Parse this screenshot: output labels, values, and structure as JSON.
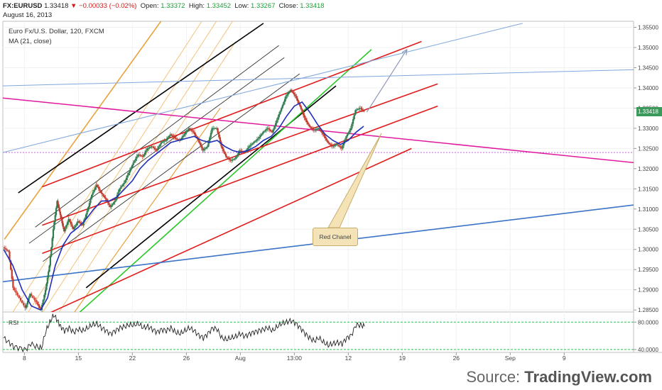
{
  "header": {
    "symbol": "FX:EURUSD",
    "last": "1.33418",
    "change_arrow": "▼",
    "change": "−0.00033 (−0.02%)",
    "open_label": "Open:",
    "open": "1.33372",
    "high_label": "High:",
    "high": "1.33452",
    "low_label": "Low:",
    "low": "1.33267",
    "close_label": "Close:",
    "close": "1.33418",
    "date": "August 16, 2013"
  },
  "legend": {
    "title": "Euro Fx/U.S. Dollar, 120, FXCM",
    "ma": "MA (21, close)"
  },
  "price_tag": "1.33418",
  "annotation": "Red Chanel",
  "source": {
    "prefix": "Source: ",
    "brand": "TradingView.com"
  },
  "chart_data": [
    {
      "type": "candlestick",
      "title": "Euro Fx/U.S. Dollar, 120, FXCM",
      "xlabel": "",
      "ylabel": "",
      "ylim": [
        1.2845,
        1.3565
      ],
      "y_ticks": [
        "1.35500",
        "1.35000",
        "1.34500",
        "1.34000",
        "1.33500",
        "1.33000",
        "1.32500",
        "1.32000",
        "1.31500",
        "1.31000",
        "1.30500",
        "1.30000",
        "1.29500",
        "1.29000",
        "1.28500"
      ],
      "x_ticks": [
        "8",
        "15",
        "22",
        "26",
        "Aug",
        "13:00",
        "12",
        "19",
        "26",
        "Sep",
        "9"
      ],
      "x_ticks_day": [
        8,
        15,
        22,
        29,
        36,
        43,
        50,
        57,
        64,
        71,
        78
      ],
      "xlim": [
        5.2,
        87
      ],
      "last_price": 1.33418,
      "colors": {
        "up": "#2e7d4f",
        "down": "#c0392b",
        "ma": "#1f2fb8"
      },
      "price_path": [
        [
          5.3,
          1.3005
        ],
        [
          6.0,
          1.2995
        ],
        [
          6.6,
          1.2905
        ],
        [
          7.4,
          1.288
        ],
        [
          8.2,
          1.2855
        ],
        [
          8.8,
          1.289
        ],
        [
          9.6,
          1.287
        ],
        [
          10.2,
          1.285
        ],
        [
          10.8,
          1.29
        ],
        [
          11.3,
          1.296
        ],
        [
          11.8,
          1.305
        ],
        [
          12.3,
          1.312
        ],
        [
          12.7,
          1.3085
        ],
        [
          13.2,
          1.3045
        ],
        [
          13.8,
          1.3075
        ],
        [
          14.4,
          1.305
        ],
        [
          15.0,
          1.307
        ],
        [
          15.6,
          1.306
        ],
        [
          16.2,
          1.3095
        ],
        [
          16.8,
          1.3135
        ],
        [
          17.4,
          1.316
        ],
        [
          18.0,
          1.314
        ],
        [
          18.6,
          1.3125
        ],
        [
          19.2,
          1.3105
        ],
        [
          19.8,
          1.312
        ],
        [
          20.4,
          1.315
        ],
        [
          21.0,
          1.3165
        ],
        [
          21.6,
          1.319
        ],
        [
          22.2,
          1.3215
        ],
        [
          22.8,
          1.3235
        ],
        [
          23.4,
          1.323
        ],
        [
          24.0,
          1.325
        ],
        [
          24.6,
          1.3255
        ],
        [
          25.2,
          1.3245
        ],
        [
          25.8,
          1.3265
        ],
        [
          26.4,
          1.327
        ],
        [
          27.0,
          1.3285
        ],
        [
          27.6,
          1.3275
        ],
        [
          28.2,
          1.327
        ],
        [
          28.8,
          1.3285
        ],
        [
          29.4,
          1.33
        ],
        [
          30.0,
          1.329
        ],
        [
          30.6,
          1.327
        ],
        [
          31.2,
          1.3245
        ],
        [
          31.8,
          1.3255
        ],
        [
          32.4,
          1.33
        ],
        [
          33.0,
          1.33
        ],
        [
          33.6,
          1.3255
        ],
        [
          34.2,
          1.323
        ],
        [
          34.8,
          1.322
        ],
        [
          35.4,
          1.3225
        ],
        [
          36.0,
          1.3245
        ],
        [
          36.6,
          1.324
        ],
        [
          37.2,
          1.3255
        ],
        [
          37.8,
          1.3265
        ],
        [
          38.4,
          1.3275
        ],
        [
          39.0,
          1.329
        ],
        [
          39.6,
          1.33
        ],
        [
          40.2,
          1.329
        ],
        [
          40.8,
          1.332
        ],
        [
          41.4,
          1.335
        ],
        [
          42.0,
          1.338
        ],
        [
          42.6,
          1.3395
        ],
        [
          43.2,
          1.338
        ],
        [
          43.8,
          1.3355
        ],
        [
          44.4,
          1.3325
        ],
        [
          45.0,
          1.3305
        ],
        [
          45.6,
          1.3295
        ],
        [
          46.2,
          1.33
        ],
        [
          46.8,
          1.3285
        ],
        [
          47.4,
          1.3265
        ],
        [
          48.0,
          1.3255
        ],
        [
          48.6,
          1.326
        ],
        [
          49.2,
          1.325
        ],
        [
          49.8,
          1.328
        ],
        [
          50.4,
          1.33
        ],
        [
          51.0,
          1.3345
        ],
        [
          51.6,
          1.335
        ],
        [
          52.1,
          1.3342
        ]
      ],
      "ma_path": [
        [
          5.3,
          1.3
        ],
        [
          6.5,
          1.296
        ],
        [
          7.7,
          1.29
        ],
        [
          8.9,
          1.286
        ],
        [
          10.1,
          1.285
        ],
        [
          11.0,
          1.288
        ],
        [
          12.0,
          1.296
        ],
        [
          13.0,
          1.301
        ],
        [
          14.0,
          1.304
        ],
        [
          15.0,
          1.3055
        ],
        [
          16.0,
          1.3075
        ],
        [
          17.0,
          1.31
        ],
        [
          18.0,
          1.312
        ],
        [
          19.0,
          1.312
        ],
        [
          20.0,
          1.313
        ],
        [
          21.0,
          1.315
        ],
        [
          22.0,
          1.317
        ],
        [
          23.0,
          1.32
        ],
        [
          24.0,
          1.322
        ],
        [
          25.0,
          1.3235
        ],
        [
          26.0,
          1.325
        ],
        [
          27.0,
          1.3265
        ],
        [
          28.0,
          1.327
        ],
        [
          29.0,
          1.3275
        ],
        [
          30.0,
          1.328
        ],
        [
          31.0,
          1.327
        ],
        [
          32.0,
          1.3265
        ],
        [
          33.0,
          1.327
        ],
        [
          34.0,
          1.3255
        ],
        [
          35.0,
          1.3245
        ],
        [
          36.0,
          1.324
        ],
        [
          37.0,
          1.3245
        ],
        [
          38.0,
          1.3255
        ],
        [
          39.0,
          1.327
        ],
        [
          40.0,
          1.328
        ],
        [
          41.0,
          1.33
        ],
        [
          42.0,
          1.333
        ],
        [
          43.0,
          1.3355
        ],
        [
          44.0,
          1.3365
        ],
        [
          45.0,
          1.334
        ],
        [
          46.0,
          1.331
        ],
        [
          47.0,
          1.3285
        ],
        [
          48.0,
          1.327
        ],
        [
          49.0,
          1.326
        ],
        [
          50.0,
          1.327
        ],
        [
          51.0,
          1.329
        ],
        [
          52.0,
          1.3305
        ]
      ],
      "drawings": [
        {
          "color": "#e8a33d",
          "w": 1.6,
          "from": [
            5.4,
            1.3025
          ],
          "to": [
            25.7,
            1.3565
          ]
        },
        {
          "color": "#e8a33d",
          "w": 1.2,
          "from": [
            14.5,
            1.2845
          ],
          "to": [
            33.4,
            1.335
          ]
        },
        {
          "color": "#f2c37a",
          "w": 1.0,
          "from": [
            6.5,
            1.2845
          ],
          "to": [
            31.0,
            1.3565
          ]
        },
        {
          "color": "#f2c37a",
          "w": 1.0,
          "from": [
            12.5,
            1.2845
          ],
          "to": [
            35.4,
            1.3515
          ]
        },
        {
          "color": "#f2c37a",
          "w": 1.0,
          "from": [
            8.5,
            1.2845
          ],
          "to": [
            32.9,
            1.3565
          ]
        },
        {
          "color": "#f2c37a",
          "w": 1.0,
          "from": [
            10.4,
            1.2845
          ],
          "to": [
            35.0,
            1.3565
          ]
        },
        {
          "color": "#000000",
          "w": 1.6,
          "from": [
            7.2,
            1.314
          ],
          "to": [
            39.0,
            1.356
          ]
        },
        {
          "color": "#000000",
          "w": 1.6,
          "from": [
            16.0,
            1.2905
          ],
          "to": [
            48.4,
            1.3405
          ]
        },
        {
          "color": "#333333",
          "w": 0.9,
          "from": [
            9.4,
            1.3055
          ],
          "to": [
            41.0,
            1.3505
          ]
        },
        {
          "color": "#333333",
          "w": 0.9,
          "from": [
            8.6,
            1.3015
          ],
          "to": [
            41.7,
            1.3475
          ]
        },
        {
          "color": "#333333",
          "w": 0.9,
          "from": [
            10.4,
            1.297
          ],
          "to": [
            43.7,
            1.3435
          ]
        },
        {
          "color": "#2bc72b",
          "w": 1.6,
          "from": [
            15.2,
            1.2845
          ],
          "to": [
            53.0,
            1.3495
          ]
        },
        {
          "color": "#e21c1c",
          "w": 1.6,
          "from": [
            10.3,
            1.3155
          ],
          "to": [
            59.5,
            1.3515
          ]
        },
        {
          "color": "#e21c1c",
          "w": 1.6,
          "from": [
            10.3,
            1.306
          ],
          "to": [
            61.6,
            1.341
          ]
        },
        {
          "color": "#e21c1c",
          "w": 1.6,
          "from": [
            10.3,
            1.299
          ],
          "to": [
            61.6,
            1.3355
          ]
        },
        {
          "color": "#e21c1c",
          "w": 1.6,
          "from": [
            5.2,
            1.279
          ],
          "to": [
            58.2,
            1.325
          ]
        },
        {
          "color": "#e0199e",
          "w": 1.5,
          "from": [
            5.2,
            1.3375
          ],
          "to": [
            87.0,
            1.3215
          ]
        },
        {
          "color": "#80a7dc",
          "w": 1.0,
          "from": [
            5.2,
            1.3405
          ],
          "to": [
            87.0,
            1.3445
          ]
        },
        {
          "color": "#80a7dc",
          "w": 1.0,
          "from": [
            5.2,
            1.324
          ],
          "to": [
            72.6,
            1.356
          ]
        },
        {
          "color": "#3a73c8",
          "w": 1.6,
          "from": [
            5.2,
            1.292
          ],
          "to": [
            87.0,
            1.311
          ]
        },
        {
          "color": "#8e99b9",
          "w": 1.2,
          "from": [
            52.4,
            1.334
          ],
          "to": [
            57.6,
            1.3495
          ],
          "arrow": true
        }
      ],
      "hlines": [
        {
          "color": "#c34bd6",
          "w": 0.8,
          "dash": "2,2",
          "y": 1.324
        }
      ]
    },
    {
      "type": "line",
      "title": "RSI",
      "ylim": [
        32,
        88
      ],
      "y_ticks": [
        "80.0000",
        "40.0000"
      ],
      "bands": [
        {
          "y": 74,
          "color": "#29c44a"
        },
        {
          "y": 36,
          "color": "#29c44a"
        }
      ],
      "rsi_path": [
        [
          5.3,
          52
        ],
        [
          6.0,
          46
        ],
        [
          6.6,
          40
        ],
        [
          7.4,
          38
        ],
        [
          8.2,
          36
        ],
        [
          8.8,
          44
        ],
        [
          9.6,
          40
        ],
        [
          10.2,
          38
        ],
        [
          10.8,
          62
        ],
        [
          11.3,
          74
        ],
        [
          11.8,
          84
        ],
        [
          12.3,
          76
        ],
        [
          12.7,
          68
        ],
        [
          13.2,
          62
        ],
        [
          13.8,
          66
        ],
        [
          14.4,
          60
        ],
        [
          15.0,
          64
        ],
        [
          15.6,
          62
        ],
        [
          16.2,
          66
        ],
        [
          16.8,
          70
        ],
        [
          17.4,
          72
        ],
        [
          18.0,
          66
        ],
        [
          18.6,
          62
        ],
        [
          19.2,
          58
        ],
        [
          19.8,
          62
        ],
        [
          20.4,
          66
        ],
        [
          21.0,
          68
        ],
        [
          21.6,
          70
        ],
        [
          22.2,
          70
        ],
        [
          22.8,
          72
        ],
        [
          23.4,
          66
        ],
        [
          24.0,
          68
        ],
        [
          24.6,
          64
        ],
        [
          25.2,
          60
        ],
        [
          25.8,
          64
        ],
        [
          26.4,
          62
        ],
        [
          27.0,
          66
        ],
        [
          27.6,
          60
        ],
        [
          28.2,
          58
        ],
        [
          28.8,
          62
        ],
        [
          29.4,
          66
        ],
        [
          30.0,
          62
        ],
        [
          30.6,
          56
        ],
        [
          31.2,
          52
        ],
        [
          31.8,
          58
        ],
        [
          32.4,
          66
        ],
        [
          33.0,
          64
        ],
        [
          33.6,
          52
        ],
        [
          34.2,
          50
        ],
        [
          34.8,
          52
        ],
        [
          35.4,
          54
        ],
        [
          36.0,
          58
        ],
        [
          36.6,
          54
        ],
        [
          37.2,
          58
        ],
        [
          37.8,
          60
        ],
        [
          38.4,
          62
        ],
        [
          39.0,
          64
        ],
        [
          39.6,
          66
        ],
        [
          40.2,
          62
        ],
        [
          40.8,
          68
        ],
        [
          41.4,
          72
        ],
        [
          42.0,
          74
        ],
        [
          42.6,
          76
        ],
        [
          43.2,
          72
        ],
        [
          43.8,
          66
        ],
        [
          44.4,
          58
        ],
        [
          45.0,
          52
        ],
        [
          45.6,
          48
        ],
        [
          46.2,
          52
        ],
        [
          46.8,
          46
        ],
        [
          47.4,
          42
        ],
        [
          48.0,
          44
        ],
        [
          48.6,
          46
        ],
        [
          49.2,
          44
        ],
        [
          49.8,
          52
        ],
        [
          50.4,
          56
        ],
        [
          51.0,
          70
        ],
        [
          51.6,
          70
        ],
        [
          52.1,
          68
        ]
      ]
    }
  ]
}
